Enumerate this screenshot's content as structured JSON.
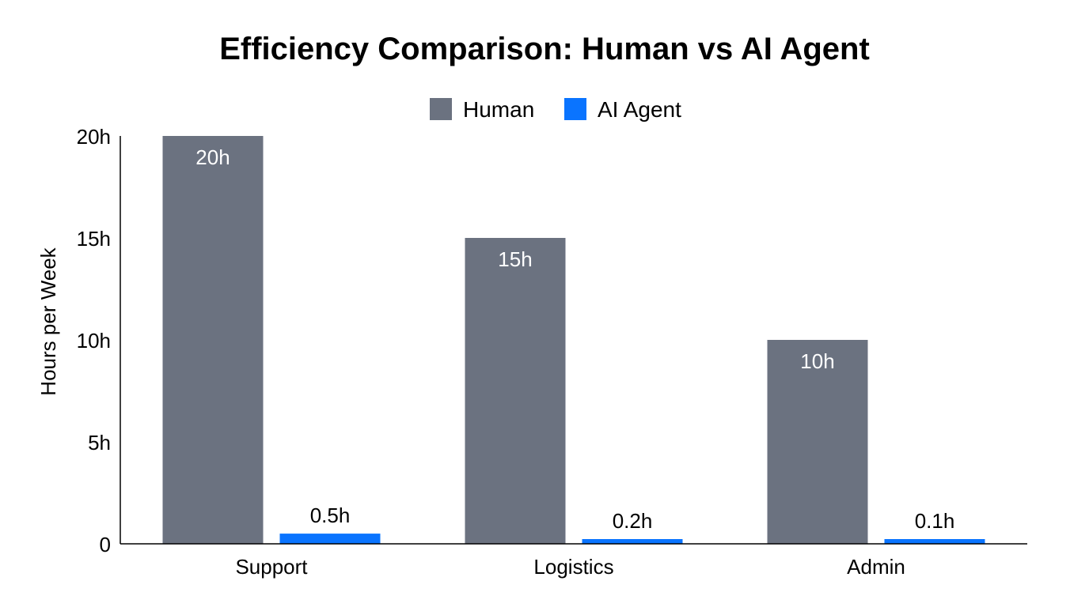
{
  "chart_data": {
    "type": "bar",
    "title": "Efficiency Comparison: Human vs AI Agent",
    "xlabel": "",
    "ylabel": "Hours per Week",
    "ylim": [
      0,
      20
    ],
    "yticks": [
      0,
      5,
      10,
      15,
      20
    ],
    "ytick_labels": [
      "0",
      "5h",
      "10h",
      "15h",
      "20h"
    ],
    "categories": [
      "Support",
      "Logistics",
      "Admin"
    ],
    "series": [
      {
        "name": "Human",
        "values": [
          20,
          15,
          10
        ],
        "labels": [
          "20h",
          "15h",
          "10h"
        ],
        "color": "#6b7280"
      },
      {
        "name": "AI Agent",
        "values": [
          0.5,
          0.2,
          0.1
        ],
        "labels": [
          "0.5h",
          "0.2h",
          "0.1h"
        ],
        "color": "#0a74ff"
      }
    ],
    "legend": "top-center",
    "grid": false
  }
}
